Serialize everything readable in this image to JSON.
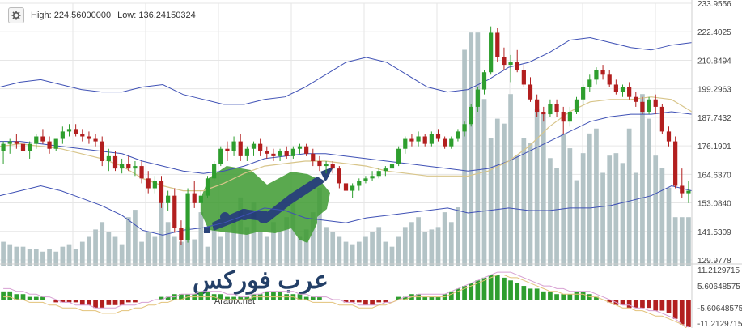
{
  "header": {
    "high_label": "High: 224.56000000",
    "low_label": "Low: 136.24150324",
    "settings_icon": "gear-icon"
  },
  "watermark": {
    "brand_arabic": "عرب فوركس",
    "site": "Arabfx.net"
  },
  "colors": {
    "up": "#2e9e2e",
    "down": "#b21f1f",
    "volume": "#b3c3c6",
    "bollinger": "#3f51b5",
    "ma": "#d8c58a",
    "macd_signal": "#d7a0d2",
    "macd_line": "#e3c27a",
    "grid": "#e6e6e6"
  },
  "chart_data": [
    {
      "type": "candlestick",
      "ylim": [
        129.9778,
        233.9556
      ],
      "y_ticks": [
        "233.9556",
        "222.4025",
        "210.8494",
        "199.2963",
        "187.7432",
        "176.1901",
        "164.6370",
        "153.0840",
        "141.5309",
        "129.9778"
      ],
      "high": 224.56,
      "low": 136.24150324,
      "candles": [
        {
          "o": 174,
          "h": 178,
          "l": 169,
          "c": 177
        },
        {
          "o": 177,
          "h": 179,
          "l": 173,
          "c": 178
        },
        {
          "o": 178,
          "h": 181,
          "l": 175,
          "c": 177
        },
        {
          "o": 177,
          "h": 180,
          "l": 172,
          "c": 174
        },
        {
          "o": 174,
          "h": 178,
          "l": 171,
          "c": 177
        },
        {
          "o": 177,
          "h": 181,
          "l": 175,
          "c": 180
        },
        {
          "o": 180,
          "h": 183,
          "l": 177,
          "c": 178
        },
        {
          "o": 178,
          "h": 180,
          "l": 173,
          "c": 175
        },
        {
          "o": 175,
          "h": 179,
          "l": 174,
          "c": 179
        },
        {
          "o": 179,
          "h": 184,
          "l": 177,
          "c": 182
        },
        {
          "o": 182,
          "h": 185,
          "l": 180,
          "c": 183
        },
        {
          "o": 183,
          "h": 185,
          "l": 180,
          "c": 181
        },
        {
          "o": 181,
          "h": 183,
          "l": 178,
          "c": 180
        },
        {
          "o": 180,
          "h": 182,
          "l": 177,
          "c": 179
        },
        {
          "o": 179,
          "h": 181,
          "l": 176,
          "c": 178
        },
        {
          "o": 178,
          "h": 180,
          "l": 168,
          "c": 170
        },
        {
          "o": 170,
          "h": 175,
          "l": 166,
          "c": 172
        },
        {
          "o": 172,
          "h": 174,
          "l": 166,
          "c": 167
        },
        {
          "o": 167,
          "h": 171,
          "l": 165,
          "c": 169
        },
        {
          "o": 169,
          "h": 172,
          "l": 166,
          "c": 167
        },
        {
          "o": 167,
          "h": 170,
          "l": 164,
          "c": 168
        },
        {
          "o": 168,
          "h": 170,
          "l": 161,
          "c": 163
        },
        {
          "o": 163,
          "h": 166,
          "l": 157,
          "c": 159
        },
        {
          "o": 159,
          "h": 164,
          "l": 157,
          "c": 162
        },
        {
          "o": 162,
          "h": 164,
          "l": 151,
          "c": 153
        },
        {
          "o": 153,
          "h": 158,
          "l": 150,
          "c": 156
        },
        {
          "o": 156,
          "h": 159,
          "l": 141,
          "c": 143
        },
        {
          "o": 143,
          "h": 146,
          "l": 136,
          "c": 138
        },
        {
          "o": 138,
          "h": 159,
          "l": 137,
          "c": 157
        },
        {
          "o": 157,
          "h": 162,
          "l": 151,
          "c": 153
        },
        {
          "o": 153,
          "h": 158,
          "l": 149,
          "c": 156
        },
        {
          "o": 156,
          "h": 164,
          "l": 155,
          "c": 163
        },
        {
          "o": 163,
          "h": 170,
          "l": 162,
          "c": 169
        },
        {
          "o": 169,
          "h": 176,
          "l": 168,
          "c": 175
        },
        {
          "o": 175,
          "h": 178,
          "l": 170,
          "c": 174
        },
        {
          "o": 174,
          "h": 180,
          "l": 172,
          "c": 178
        },
        {
          "o": 178,
          "h": 181,
          "l": 170,
          "c": 172
        },
        {
          "o": 172,
          "h": 176,
          "l": 170,
          "c": 175
        },
        {
          "o": 175,
          "h": 178,
          "l": 172,
          "c": 177
        },
        {
          "o": 177,
          "h": 179,
          "l": 172,
          "c": 174
        },
        {
          "o": 174,
          "h": 176,
          "l": 171,
          "c": 173
        },
        {
          "o": 173,
          "h": 175,
          "l": 170,
          "c": 172
        },
        {
          "o": 172,
          "h": 175,
          "l": 170,
          "c": 174
        },
        {
          "o": 174,
          "h": 176,
          "l": 171,
          "c": 172
        },
        {
          "o": 172,
          "h": 176,
          "l": 171,
          "c": 175
        },
        {
          "o": 175,
          "h": 177,
          "l": 173,
          "c": 176
        },
        {
          "o": 176,
          "h": 177,
          "l": 172,
          "c": 173
        },
        {
          "o": 173,
          "h": 175,
          "l": 168,
          "c": 170
        },
        {
          "o": 170,
          "h": 172,
          "l": 166,
          "c": 168
        },
        {
          "o": 168,
          "h": 170,
          "l": 165,
          "c": 169
        },
        {
          "o": 169,
          "h": 170,
          "l": 165,
          "c": 167
        },
        {
          "o": 167,
          "h": 168,
          "l": 159,
          "c": 161
        },
        {
          "o": 161,
          "h": 163,
          "l": 156,
          "c": 158
        },
        {
          "o": 158,
          "h": 161,
          "l": 155,
          "c": 160
        },
        {
          "o": 160,
          "h": 163,
          "l": 158,
          "c": 162
        },
        {
          "o": 162,
          "h": 164,
          "l": 161,
          "c": 163
        },
        {
          "o": 163,
          "h": 166,
          "l": 162,
          "c": 164
        },
        {
          "o": 164,
          "h": 167,
          "l": 163,
          "c": 166
        },
        {
          "o": 166,
          "h": 168,
          "l": 164,
          "c": 167
        },
        {
          "o": 167,
          "h": 170,
          "l": 165,
          "c": 169
        },
        {
          "o": 169,
          "h": 176,
          "l": 168,
          "c": 175
        },
        {
          "o": 175,
          "h": 180,
          "l": 173,
          "c": 179
        },
        {
          "o": 179,
          "h": 181,
          "l": 176,
          "c": 178
        },
        {
          "o": 178,
          "h": 182,
          "l": 176,
          "c": 180
        },
        {
          "o": 180,
          "h": 181,
          "l": 176,
          "c": 177
        },
        {
          "o": 177,
          "h": 182,
          "l": 176,
          "c": 181
        },
        {
          "o": 181,
          "h": 183,
          "l": 178,
          "c": 179
        },
        {
          "o": 179,
          "h": 180,
          "l": 175,
          "c": 176
        },
        {
          "o": 176,
          "h": 180,
          "l": 175,
          "c": 179
        },
        {
          "o": 179,
          "h": 183,
          "l": 178,
          "c": 182
        },
        {
          "o": 182,
          "h": 186,
          "l": 180,
          "c": 185
        },
        {
          "o": 185,
          "h": 193,
          "l": 184,
          "c": 192
        },
        {
          "o": 192,
          "h": 200,
          "l": 190,
          "c": 199
        },
        {
          "o": 199,
          "h": 207,
          "l": 197,
          "c": 206
        },
        {
          "o": 206,
          "h": 224.56,
          "l": 205,
          "c": 222
        },
        {
          "o": 222,
          "h": 224,
          "l": 210,
          "c": 212
        },
        {
          "o": 212,
          "h": 216,
          "l": 207,
          "c": 209
        },
        {
          "o": 209,
          "h": 213,
          "l": 202,
          "c": 210
        },
        {
          "o": 210,
          "h": 215,
          "l": 206,
          "c": 207
        },
        {
          "o": 207,
          "h": 209,
          "l": 200,
          "c": 201
        },
        {
          "o": 201,
          "h": 204,
          "l": 194,
          "c": 195
        },
        {
          "o": 195,
          "h": 197,
          "l": 188,
          "c": 190
        },
        {
          "o": 190,
          "h": 192,
          "l": 186,
          "c": 189
        },
        {
          "o": 189,
          "h": 195,
          "l": 188,
          "c": 193
        },
        {
          "o": 193,
          "h": 195,
          "l": 188,
          "c": 190
        },
        {
          "o": 190,
          "h": 192,
          "l": 181,
          "c": 186
        },
        {
          "o": 186,
          "h": 192,
          "l": 184,
          "c": 190
        },
        {
          "o": 190,
          "h": 196,
          "l": 189,
          "c": 195
        },
        {
          "o": 195,
          "h": 201,
          "l": 193,
          "c": 200
        },
        {
          "o": 200,
          "h": 205,
          "l": 198,
          "c": 203
        },
        {
          "o": 203,
          "h": 208,
          "l": 201,
          "c": 207
        },
        {
          "o": 207,
          "h": 209,
          "l": 203,
          "c": 205
        },
        {
          "o": 205,
          "h": 207,
          "l": 200,
          "c": 201
        },
        {
          "o": 201,
          "h": 203,
          "l": 197,
          "c": 198
        },
        {
          "o": 198,
          "h": 201,
          "l": 196,
          "c": 200
        },
        {
          "o": 200,
          "h": 202,
          "l": 195,
          "c": 196
        },
        {
          "o": 196,
          "h": 198,
          "l": 192,
          "c": 194
        },
        {
          "o": 194,
          "h": 196,
          "l": 189,
          "c": 190
        },
        {
          "o": 190,
          "h": 196,
          "l": 189,
          "c": 195
        },
        {
          "o": 195,
          "h": 197,
          "l": 189,
          "c": 192
        },
        {
          "o": 192,
          "h": 193,
          "l": 181,
          "c": 182
        },
        {
          "o": 182,
          "h": 184,
          "l": 176,
          "c": 178
        },
        {
          "o": 178,
          "h": 180,
          "l": 159,
          "c": 160
        },
        {
          "o": 160,
          "h": 167,
          "l": 155,
          "c": 157
        },
        {
          "o": 157,
          "h": 162,
          "l": 153,
          "c": 158
        }
      ],
      "volume": [
        10,
        9,
        8,
        8,
        7,
        7,
        6,
        7,
        6,
        8,
        9,
        7,
        10,
        12,
        15,
        18,
        14,
        12,
        9,
        20,
        23,
        10,
        14,
        12,
        26,
        18,
        12,
        10,
        16,
        11,
        22,
        8,
        15,
        12,
        14,
        19,
        28,
        16,
        26,
        14,
        12,
        18,
        14,
        20,
        26,
        12,
        15,
        22,
        32,
        16,
        14,
        12,
        10,
        9,
        10,
        12,
        14,
        16,
        10,
        8,
        12,
        16,
        18,
        20,
        14,
        15,
        16,
        22,
        18,
        24,
        88,
        95,
        95,
        68,
        52,
        60,
        58,
        70,
        45,
        52,
        50,
        64,
        62,
        44,
        40,
        54,
        48,
        35,
        46,
        54,
        56,
        38,
        45,
        46,
        42,
        56,
        38,
        70,
        60,
        45,
        40,
        32,
        20,
        20,
        20
      ],
      "bollinger_upper": [
        200,
        202,
        203,
        201,
        199,
        198,
        198,
        200,
        201,
        197,
        195,
        193,
        193,
        195,
        196,
        200,
        205,
        210,
        212,
        210,
        205,
        200,
        198,
        199,
        203,
        208,
        210,
        214,
        219,
        220,
        218,
        216,
        215,
        217,
        218
      ],
      "bollinger_mid": [
        178,
        178,
        177,
        176,
        175,
        174,
        173,
        170,
        168,
        166,
        165,
        166,
        168,
        171,
        172,
        173,
        173,
        172,
        171,
        170,
        169,
        168,
        167,
        166,
        167,
        170,
        174,
        178,
        182,
        186,
        188,
        189,
        189,
        190,
        189
      ],
      "bollinger_lower": [
        156,
        158,
        160,
        158,
        155,
        152,
        148,
        142,
        140,
        142,
        143,
        145,
        148,
        151,
        150,
        147,
        146,
        145,
        147,
        148,
        149,
        150,
        151,
        149,
        150,
        151,
        150,
        150,
        151,
        151,
        152,
        154,
        156,
        160,
        158
      ],
      "moving_average": [
        176,
        177,
        176,
        175,
        173,
        171,
        168,
        163,
        160,
        158,
        158,
        161,
        165,
        168,
        169,
        170,
        170,
        169,
        168,
        166,
        165,
        164,
        164,
        164,
        166,
        170,
        176,
        184,
        190,
        194,
        195,
        195,
        196,
        195,
        190
      ],
      "macd_ticks": [
        "11.2129715",
        "5.60648575",
        "-5.60648575",
        "-11.2129715"
      ],
      "macd_histogram": [
        3,
        3,
        2,
        2,
        1,
        1,
        1,
        0,
        -1,
        -1,
        -1,
        -1,
        -2,
        -2,
        -3,
        -3,
        -2,
        -2,
        -2,
        -1,
        -1,
        0,
        0,
        0,
        1,
        1,
        2,
        2,
        2,
        2,
        3,
        3,
        2,
        2,
        1,
        1,
        1,
        1,
        2,
        2,
        3,
        3,
        3,
        2,
        2,
        2,
        1,
        1,
        1,
        0,
        0,
        0,
        -1,
        -1,
        -1,
        -2,
        -2,
        -1,
        -1,
        0,
        1,
        1,
        2,
        2,
        1,
        1,
        1,
        2,
        3,
        4,
        5,
        6,
        7,
        8,
        9,
        9,
        8,
        7,
        6,
        5,
        4,
        4,
        3,
        3,
        2,
        2,
        2,
        3,
        3,
        2,
        1,
        0,
        -1,
        -2,
        -2,
        -3,
        -3,
        -3,
        -3,
        -4,
        -4,
        -5,
        -7,
        -9,
        -10
      ],
      "macd_signal": [
        4,
        4,
        3,
        3,
        2,
        2,
        1,
        1,
        0,
        -1,
        -1,
        -2,
        -2,
        -2,
        -3,
        -3,
        -3,
        -3,
        -2,
        -2,
        -2,
        -1,
        -1,
        0,
        0,
        1,
        1,
        2,
        2,
        2,
        3,
        3,
        3,
        3,
        2,
        2,
        1,
        1,
        2,
        2,
        3,
        3,
        3,
        3,
        3,
        2,
        2,
        1,
        1,
        1,
        0,
        0,
        -1,
        -1,
        -2,
        -2,
        -2,
        -2,
        -1,
        -1,
        0,
        1,
        1,
        2,
        2,
        2,
        2,
        2,
        3,
        4,
        5,
        6,
        7,
        8,
        9,
        10,
        10,
        10,
        9,
        8,
        7,
        6,
        5,
        5,
        4,
        4,
        3,
        3,
        3,
        3,
        2,
        1,
        0,
        -1,
        -2,
        -2,
        -3,
        -3,
        -4,
        -4,
        -5,
        -6,
        -7,
        -9,
        -10
      ],
      "macd_line": [
        1,
        1,
        0,
        0,
        -1,
        -1,
        -1,
        -2,
        -2,
        -3,
        -3,
        -3,
        -4,
        -4,
        -4,
        -5,
        -5,
        -5,
        -4,
        -4,
        -3,
        -3,
        -2,
        -2,
        -1,
        -1,
        0,
        0,
        1,
        1,
        1,
        1,
        1,
        0,
        0,
        0,
        0,
        0,
        1,
        1,
        1,
        1,
        1,
        1,
        1,
        0,
        0,
        -1,
        -1,
        -1,
        -1,
        -2,
        -2,
        -2,
        -3,
        -3,
        -3,
        -2,
        -2,
        -1,
        0,
        0,
        1,
        1,
        1,
        1,
        1,
        1,
        2,
        3,
        4,
        5,
        6,
        7,
        8,
        9,
        9,
        8,
        8,
        7,
        6,
        5,
        4,
        3,
        3,
        2,
        2,
        2,
        2,
        1,
        1,
        0,
        -1,
        -2,
        -3,
        -3,
        -4,
        -4,
        -5,
        -6,
        -6,
        -7,
        -8,
        -9,
        -11
      ],
      "grid": true
    }
  ]
}
